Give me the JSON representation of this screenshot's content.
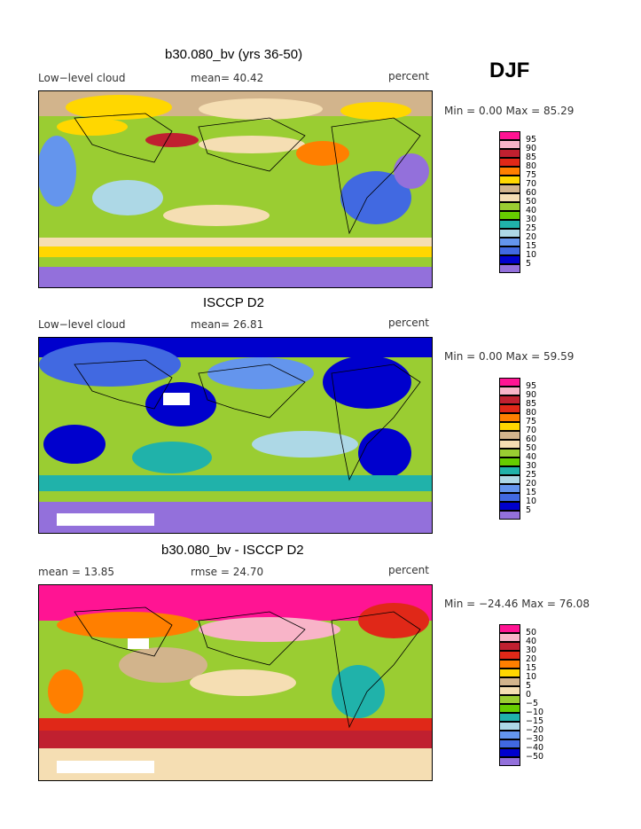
{
  "season": "DJF",
  "panels": [
    {
      "title": "b30.080_bv (yrs 36-50)",
      "left_label": "Low−level cloud",
      "center_label": "mean=  40.42",
      "right_label": "percent",
      "minmax": "Min =   0.00 Max =  85.29",
      "legend": [
        "95",
        "90",
        "85",
        "80",
        "75",
        "70",
        "60",
        "50",
        "40",
        "30",
        "25",
        "20",
        "15",
        "10",
        "5"
      ]
    },
    {
      "title": "ISCCP D2",
      "left_label": "Low−level cloud",
      "center_label": "mean=  26.81",
      "right_label": "percent",
      "minmax": "Min =   0.00 Max =  59.59",
      "legend": [
        "95",
        "90",
        "85",
        "80",
        "75",
        "70",
        "60",
        "50",
        "40",
        "30",
        "25",
        "20",
        "15",
        "10",
        "5"
      ]
    },
    {
      "title": "b30.080_bv - ISCCP D2",
      "left_label": "mean =  13.85",
      "center_label": "rmse =  24.70",
      "right_label": "percent",
      "minmax": "Min = −24.46 Max =  76.08",
      "legend": [
        "50",
        "40",
        "30",
        "20",
        "15",
        "10",
        "5",
        "0",
        "−5",
        "−10",
        "−15",
        "−20",
        "−30",
        "−40",
        "−50"
      ]
    }
  ],
  "colors": {
    "legend_scale": [
      "#ff1493",
      "#f8b4c8",
      "#c02030",
      "#e02818",
      "#ff7f00",
      "#ffd700",
      "#d2b48c",
      "#f5deb3",
      "#9acd32",
      "#66cd00",
      "#20b2aa",
      "#add8e6",
      "#6495ed",
      "#4169e1",
      "#0000cd",
      "#9370db"
    ]
  }
}
